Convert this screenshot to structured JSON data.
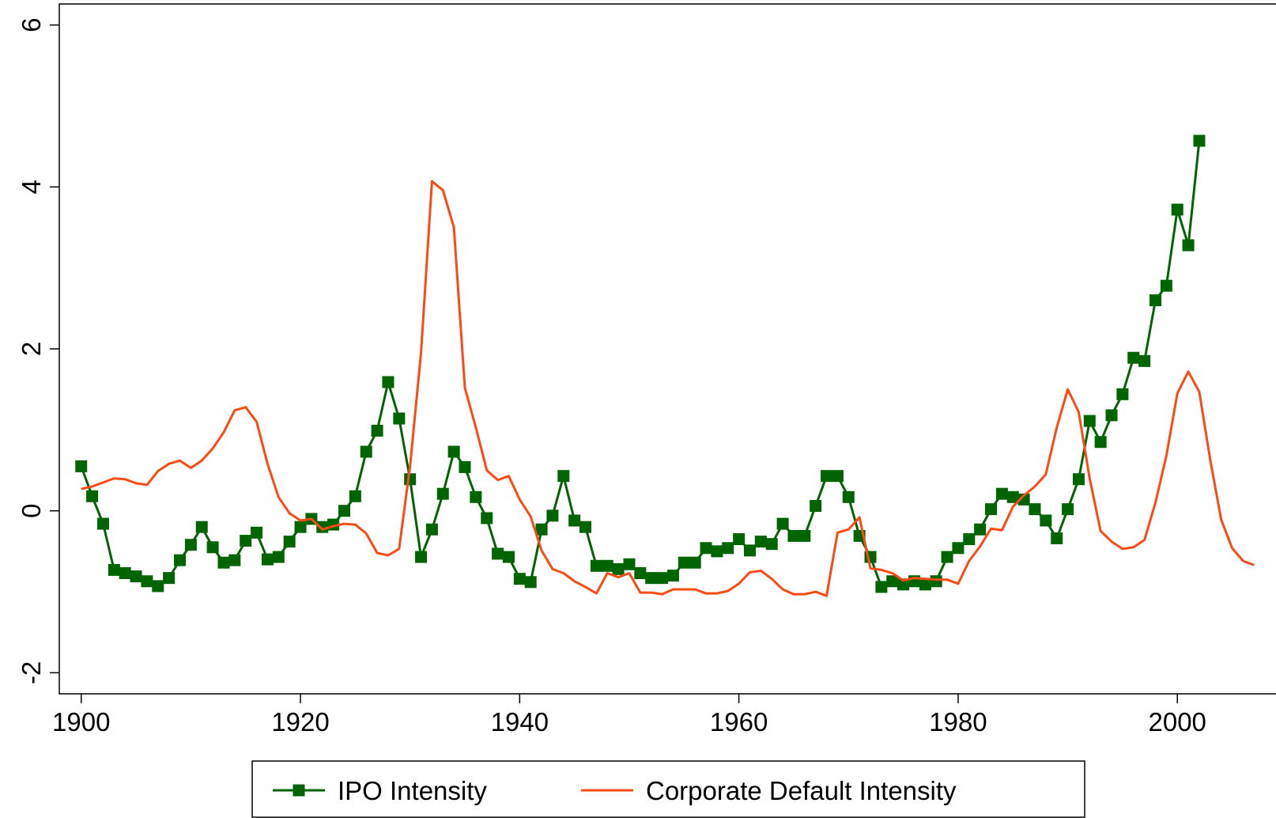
{
  "chart_data": {
    "type": "line",
    "x": [
      1900,
      1901,
      1902,
      1903,
      1904,
      1905,
      1906,
      1907,
      1908,
      1909,
      1910,
      1911,
      1912,
      1913,
      1914,
      1915,
      1916,
      1917,
      1918,
      1919,
      1920,
      1921,
      1922,
      1923,
      1924,
      1925,
      1926,
      1927,
      1928,
      1929,
      1930,
      1931,
      1932,
      1933,
      1934,
      1935,
      1936,
      1937,
      1938,
      1939,
      1940,
      1941,
      1942,
      1943,
      1944,
      1945,
      1946,
      1947,
      1948,
      1949,
      1950,
      1951,
      1952,
      1953,
      1954,
      1955,
      1956,
      1957,
      1958,
      1959,
      1960,
      1961,
      1962,
      1963,
      1964,
      1965,
      1966,
      1967,
      1968,
      1969,
      1970,
      1971,
      1972,
      1973,
      1974,
      1975,
      1976,
      1977,
      1978,
      1979,
      1980,
      1981,
      1982,
      1983,
      1984,
      1985,
      1986,
      1987,
      1988,
      1989,
      1990,
      1991,
      1992,
      1993,
      1994,
      1995,
      1996,
      1997,
      1998,
      1999,
      2000,
      2001,
      2002,
      2003,
      2004,
      2005,
      2006,
      2007
    ],
    "series": [
      {
        "name": "IPO Intensity",
        "color": "#006400",
        "marker": "square",
        "values": [
          0.55,
          0.18,
          -0.16,
          -0.73,
          -0.77,
          -0.81,
          -0.87,
          -0.93,
          -0.83,
          -0.61,
          -0.42,
          -0.2,
          -0.45,
          -0.64,
          -0.61,
          -0.37,
          -0.27,
          -0.6,
          -0.57,
          -0.38,
          -0.2,
          -0.1,
          -0.2,
          -0.17,
          0.0,
          0.18,
          0.73,
          0.99,
          1.59,
          1.14,
          0.39,
          -0.57,
          -0.23,
          0.21,
          0.73,
          0.54,
          0.17,
          -0.09,
          -0.53,
          -0.57,
          -0.84,
          -0.88,
          -0.23,
          -0.06,
          0.43,
          -0.12,
          -0.2,
          -0.68,
          -0.68,
          -0.72,
          -0.66,
          -0.77,
          -0.83,
          -0.83,
          -0.8,
          -0.64,
          -0.64,
          -0.46,
          -0.5,
          -0.46,
          -0.35,
          -0.49,
          -0.38,
          -0.41,
          -0.16,
          -0.31,
          -0.31,
          0.06,
          0.43,
          0.43,
          0.17,
          -0.31,
          -0.57,
          -0.94,
          -0.87,
          -0.91,
          -0.87,
          -0.91,
          -0.87,
          -0.57,
          -0.46,
          -0.35,
          -0.23,
          0.02,
          0.21,
          0.17,
          0.14,
          0.02,
          -0.12,
          -0.34,
          0.02,
          0.39,
          1.11,
          0.85,
          1.18,
          1.44,
          1.89,
          1.85,
          2.6,
          2.78,
          3.72,
          3.28,
          4.57,
          null,
          null,
          null,
          null,
          null
        ]
      },
      {
        "name": "Corporate Default Intensity",
        "color": "#fa4b14",
        "marker": null,
        "values": [
          0.27,
          0.3,
          0.35,
          0.4,
          0.39,
          0.34,
          0.32,
          0.49,
          0.58,
          0.62,
          0.53,
          0.62,
          0.77,
          0.97,
          1.24,
          1.28,
          1.1,
          0.58,
          0.17,
          -0.03,
          -0.12,
          -0.1,
          -0.23,
          -0.19,
          -0.16,
          -0.17,
          -0.28,
          -0.52,
          -0.55,
          -0.47,
          0.55,
          1.95,
          4.07,
          3.96,
          3.5,
          1.52,
          1.03,
          0.5,
          0.38,
          0.43,
          0.14,
          -0.07,
          -0.49,
          -0.72,
          -0.77,
          -0.87,
          -0.94,
          -1.02,
          -0.77,
          -0.82,
          -0.77,
          -1.01,
          -1.01,
          -1.03,
          -0.97,
          -0.97,
          -0.97,
          -1.02,
          -1.02,
          -0.99,
          -0.9,
          -0.76,
          -0.74,
          -0.84,
          -0.97,
          -1.03,
          -1.03,
          -1.0,
          -1.05,
          -0.27,
          -0.23,
          -0.08,
          -0.71,
          -0.73,
          -0.77,
          -0.86,
          -0.83,
          -0.84,
          -0.85,
          -0.85,
          -0.9,
          -0.62,
          -0.44,
          -0.22,
          -0.24,
          0.05,
          0.19,
          0.3,
          0.45,
          1.03,
          1.5,
          1.22,
          0.4,
          -0.25,
          -0.38,
          -0.47,
          -0.45,
          -0.36,
          0.1,
          0.68,
          1.45,
          1.72,
          1.47,
          0.63,
          -0.11,
          -0.46,
          -0.62,
          -0.67
        ]
      }
    ],
    "xlim": [
      1898,
      2009
    ],
    "xticks": [
      1900,
      1920,
      1940,
      1960,
      1980,
      2000
    ],
    "ylim": [
      -2.26,
      6.26
    ],
    "yticks": [
      -2,
      0,
      2,
      4,
      6
    ],
    "grid": false,
    "legend": "bottom"
  }
}
